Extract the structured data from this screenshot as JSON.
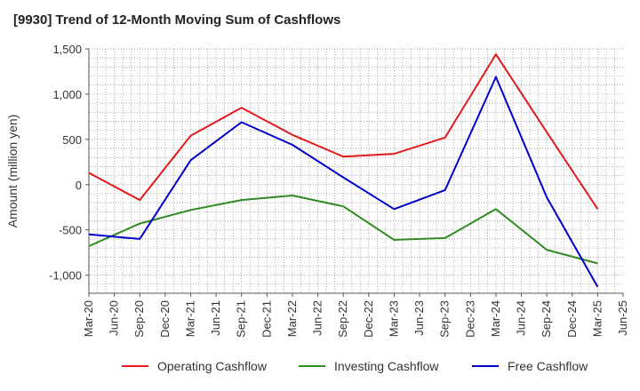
{
  "chart_data": {
    "type": "line",
    "title": "[9930]  Trend of 12-Month Moving Sum of Cashflows",
    "ylabel": "Amount (million yen)",
    "xlabel": "",
    "ylim": [
      -1200,
      1500
    ],
    "yticks": [
      1500,
      1000,
      500,
      0,
      -500,
      -1000
    ],
    "ytick_labels": [
      "1,500",
      "1,000",
      "500",
      "0",
      "-500",
      "-1,000"
    ],
    "xticks": [
      "Mar-20",
      "Jun-20",
      "Sep-20",
      "Dec-20",
      "Mar-21",
      "Jun-21",
      "Sep-21",
      "Dec-21",
      "Mar-22",
      "Jun-22",
      "Sep-22",
      "Dec-22",
      "Mar-23",
      "Jun-23",
      "Sep-23",
      "Dec-23",
      "Mar-24",
      "Jun-24",
      "Sep-24",
      "Dec-24",
      "Mar-25",
      "Jun-25"
    ],
    "grid": true,
    "legend_position": "bottom",
    "series": [
      {
        "name": "Operating Cashflow",
        "color": "#e31a1c",
        "x": [
          "Mar-20",
          "Sep-20",
          "Mar-21",
          "Sep-21",
          "Mar-22",
          "Sep-22",
          "Mar-23",
          "Sep-23",
          "Mar-24",
          "Sep-24",
          "Mar-25"
        ],
        "values": [
          130,
          -170,
          540,
          850,
          550,
          310,
          340,
          520,
          1440,
          580,
          -270
        ]
      },
      {
        "name": "Investing Cashflow",
        "color": "#2e8b22",
        "x": [
          "Mar-20",
          "Sep-20",
          "Mar-21",
          "Sep-21",
          "Mar-22",
          "Sep-22",
          "Mar-23",
          "Sep-23",
          "Mar-24",
          "Sep-24",
          "Mar-25"
        ],
        "values": [
          -680,
          -430,
          -280,
          -170,
          -120,
          -240,
          -610,
          -590,
          -270,
          -720,
          -870
        ]
      },
      {
        "name": "Free Cashflow",
        "color": "#0000cc",
        "x": [
          "Mar-20",
          "Sep-20",
          "Mar-21",
          "Sep-21",
          "Mar-22",
          "Sep-22",
          "Mar-23",
          "Sep-23",
          "Mar-24",
          "Sep-24",
          "Mar-25"
        ],
        "values": [
          -550,
          -600,
          270,
          690,
          440,
          80,
          -270,
          -60,
          1190,
          -140,
          -1130
        ]
      }
    ]
  }
}
